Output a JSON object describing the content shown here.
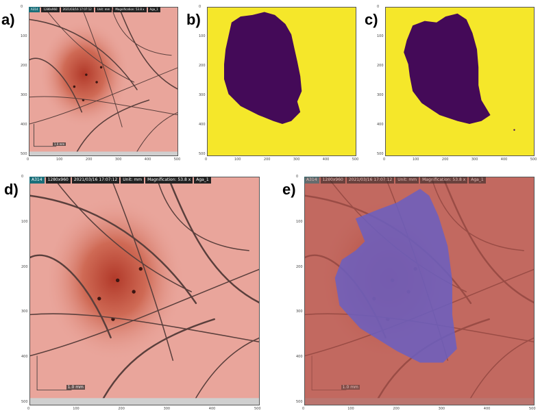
{
  "panels": [
    {
      "letter": "a)",
      "kind": "dermoscopy"
    },
    {
      "letter": "b)",
      "kind": "mask_raw"
    },
    {
      "letter": "c)",
      "kind": "mask_refined"
    },
    {
      "letter": "d)",
      "kind": "dermoscopy"
    },
    {
      "letter": "e)",
      "kind": "overlay"
    }
  ],
  "x_ticks": [
    "0",
    "100",
    "200",
    "300",
    "400",
    "500"
  ],
  "y_ticks": [
    "0",
    "100",
    "200",
    "300",
    "400",
    "500"
  ],
  "image_overlay": {
    "id": "A314",
    "resolution": "1280x960",
    "datetime": "2021/03/16 17:07:12",
    "unit": "Unit: mm",
    "magnification": "Magnification: 53.8 x",
    "name": "Aga_1",
    "scale_label": "1.0 mm"
  },
  "colors": {
    "mask_background": "#f5e72a",
    "mask_lesion": "#440a58",
    "skin": "#e9a59b",
    "lesion": "#c4503c",
    "overlay_red": "#b3524a",
    "overlay_blue": "#6a5fc2"
  }
}
